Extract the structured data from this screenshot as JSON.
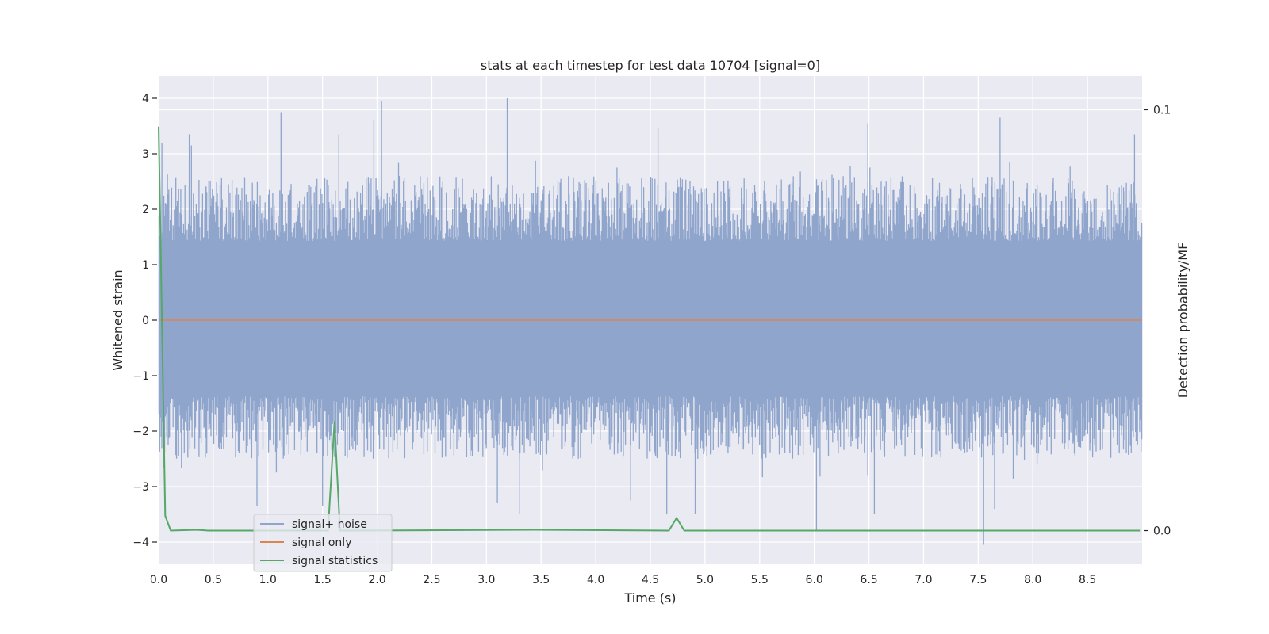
{
  "chart_data": {
    "type": "line",
    "title": "stats at each timestep for test data 10704 [signal=0]",
    "xlabel": "Time (s)",
    "ylabel": "Whitened strain",
    "ylabel_right": "Detection probability/MF",
    "xlim": [
      0.0,
      9.0
    ],
    "ylim": [
      -4.4,
      4.4
    ],
    "ylim_right": [
      -0.008,
      0.108
    ],
    "x_ticks": [
      0.0,
      0.5,
      1.0,
      1.5,
      2.0,
      2.5,
      3.0,
      3.5,
      4.0,
      4.5,
      5.0,
      5.5,
      6.0,
      6.5,
      7.0,
      7.5,
      8.0,
      8.5
    ],
    "x_tick_labels": [
      "0.0",
      "0.5",
      "1.0",
      "1.5",
      "2.0",
      "2.5",
      "3.0",
      "3.5",
      "4.0",
      "4.5",
      "5.0",
      "5.5",
      "6.0",
      "6.5",
      "7.0",
      "7.5",
      "8.0",
      "8.5"
    ],
    "y_ticks": [
      4,
      3,
      2,
      1,
      0,
      -1,
      -2,
      -3,
      -4
    ],
    "y_tick_labels": [
      "4",
      "3",
      "2",
      "1",
      "0",
      "−1",
      "−2",
      "−3",
      "−4"
    ],
    "y_right_ticks": [
      0.1,
      0.0
    ],
    "y_right_tick_labels": [
      "0.1",
      "0.0"
    ],
    "grid": true,
    "legend_position": "lower-left",
    "series": [
      {
        "name": "signal+ noise",
        "color": "#8fa5cc",
        "axis": "left",
        "kind": "noise-band",
        "core_range": [
          -0.98,
          0.98
        ],
        "envelope_range": [
          -2.5,
          2.6
        ],
        "spikes": [
          {
            "x": 0.03,
            "y": 3.2
          },
          {
            "x": 0.28,
            "y": 3.35
          },
          {
            "x": 0.3,
            "y": 3.15
          },
          {
            "x": 1.12,
            "y": 3.75
          },
          {
            "x": 1.65,
            "y": 3.35
          },
          {
            "x": 1.97,
            "y": 3.6
          },
          {
            "x": 2.04,
            "y": 3.95
          },
          {
            "x": 3.19,
            "y": 4.0
          },
          {
            "x": 4.57,
            "y": 3.45
          },
          {
            "x": 6.49,
            "y": 3.55
          },
          {
            "x": 7.7,
            "y": 3.65
          },
          {
            "x": 8.93,
            "y": 3.35
          },
          {
            "x": 0.9,
            "y": -3.35
          },
          {
            "x": 1.5,
            "y": -3.35
          },
          {
            "x": 3.1,
            "y": -3.3
          },
          {
            "x": 3.3,
            "y": -3.5
          },
          {
            "x": 4.32,
            "y": -3.25
          },
          {
            "x": 4.65,
            "y": -3.5
          },
          {
            "x": 4.91,
            "y": -3.5
          },
          {
            "x": 6.02,
            "y": -3.78
          },
          {
            "x": 6.55,
            "y": -3.5
          },
          {
            "x": 7.55,
            "y": -4.05
          },
          {
            "x": 7.65,
            "y": -3.4
          }
        ]
      },
      {
        "name": "signal only",
        "color": "#dd8452",
        "axis": "left",
        "x": [
          0.0,
          9.0
        ],
        "y": [
          0.0,
          0.0
        ]
      },
      {
        "name": "signal statistics",
        "color": "#55a868",
        "axis": "right",
        "x": [
          0.0,
          0.06,
          0.11,
          0.35,
          0.45,
          1.55,
          1.61,
          1.66,
          1.72,
          3.45,
          4.67,
          4.74,
          4.81,
          8.98
        ],
        "y": [
          0.096,
          0.0035,
          0.0,
          0.0002,
          0.0,
          0.0,
          0.026,
          0.0,
          0.0,
          0.0002,
          0.0,
          0.003,
          0.0,
          0.0
        ]
      }
    ],
    "colors": {
      "plot_bg": "#eaeaf2",
      "grid": "#ffffff",
      "text": "#262626"
    }
  }
}
